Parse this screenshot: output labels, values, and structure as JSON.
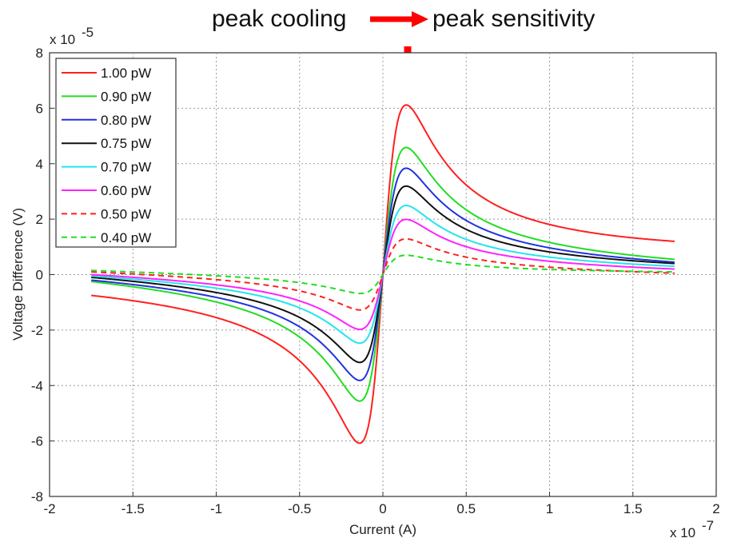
{
  "annotation": {
    "left_text": "peak cooling",
    "right_text": "peak sensitivity",
    "arrow_color": "#ff0000"
  },
  "chart_data": {
    "type": "line",
    "title": "",
    "xlabel": "Current (A)",
    "ylabel": "Voltage Difference (V)",
    "x_multiplier": "x 10",
    "x_exponent": "-7",
    "y_multiplier": "x 10",
    "y_exponent": "-5",
    "xlim": [
      -2,
      2
    ],
    "ylim": [
      -8,
      8
    ],
    "xticks": [
      "-2",
      "-1.5",
      "-1",
      "-0.5",
      "0",
      "0.5",
      "1",
      "1.5",
      "2"
    ],
    "yticks": [
      "8",
      "6",
      "4",
      "2",
      "0",
      "-2",
      "-4",
      "-6",
      "-8"
    ],
    "grid": true,
    "legend_position": "top-left",
    "x_range": [
      -1.75,
      1.75
    ],
    "peak_x": 0.14,
    "series": [
      {
        "name": "1.00 pW",
        "color": "#ff2020",
        "dash": "solid",
        "peak": 6.1,
        "end_right": 1.2,
        "end_left": -0.75
      },
      {
        "name": "0.90 pW",
        "color": "#22dd22",
        "dash": "solid",
        "peak": 4.6,
        "end_right": 0.55,
        "end_left": -0.25
      },
      {
        "name": "0.80 pW",
        "color": "#2233dd",
        "dash": "solid",
        "peak": 3.85,
        "end_right": 0.45,
        "end_left": -0.2
      },
      {
        "name": "0.75 pW",
        "color": "#111111",
        "dash": "solid",
        "peak": 3.2,
        "end_right": 0.4,
        "end_left": -0.1
      },
      {
        "name": "0.70 pW",
        "color": "#22e5ee",
        "dash": "solid",
        "peak": 2.5,
        "end_right": 0.3,
        "end_left": -0.05
      },
      {
        "name": "0.60 pW",
        "color": "#ff22ff",
        "dash": "solid",
        "peak": 2.0,
        "end_right": 0.2,
        "end_left": 0.0
      },
      {
        "name": "0.50 pW",
        "color": "#ff2020",
        "dash": "dashed",
        "peak": 1.3,
        "end_right": 0.05,
        "end_left": 0.1
      },
      {
        "name": "0.40 pW",
        "color": "#22dd22",
        "dash": "dashed",
        "peak": 0.7,
        "end_right": 0.1,
        "end_left": 0.15
      }
    ]
  }
}
